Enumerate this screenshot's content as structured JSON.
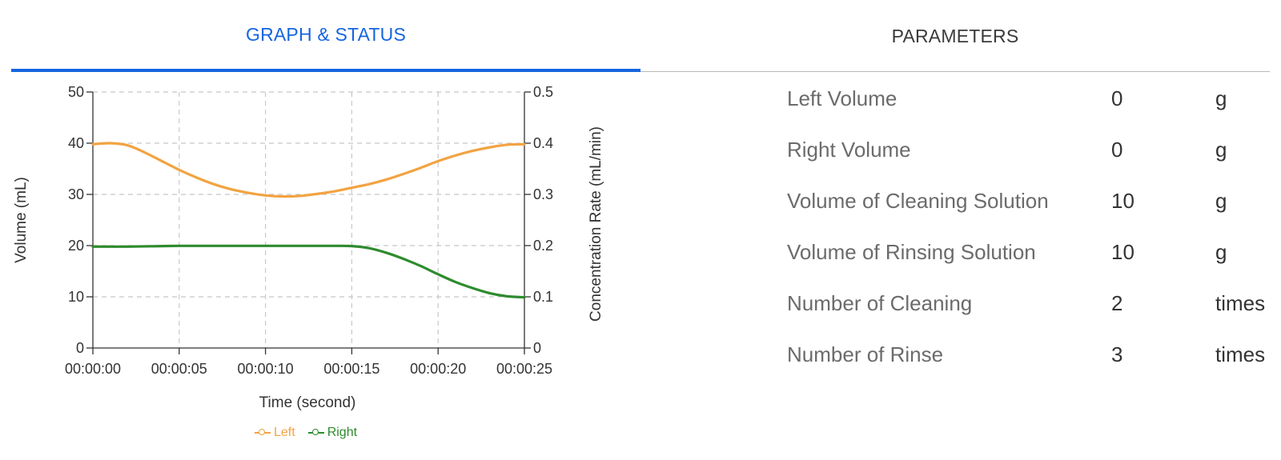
{
  "tabs": [
    {
      "label": "GRAPH & STATUS",
      "active": true
    },
    {
      "label": "PARAMETERS",
      "active": false
    }
  ],
  "colors": {
    "accent": "#1565e0",
    "left_series": "#f2a341",
    "right_series": "#2e8b2e"
  },
  "chart_data": {
    "type": "line",
    "xlabel": "Time (second)",
    "ylabel": "Volume (mL)",
    "y2label": "Concentration Rate (mL/min)",
    "x_ticks": [
      "00:00:00",
      "00:00:05",
      "00:00:10",
      "00:00:15",
      "00:00:20",
      "00:00:25"
    ],
    "xlim": [
      0,
      25
    ],
    "ylim": [
      0,
      50
    ],
    "y_ticks": [
      "0",
      "10",
      "20",
      "30",
      "40",
      "50"
    ],
    "y2lim": [
      0,
      0.5
    ],
    "y2_ticks": [
      "0",
      "0.1",
      "0.2",
      "0.3",
      "0.4",
      "0.5"
    ],
    "grid": true,
    "legend_position": "bottom-center",
    "series": [
      {
        "name": "Left",
        "x": [
          0,
          1,
          2,
          3,
          4,
          5,
          6,
          7,
          8,
          9,
          10,
          11,
          12,
          13,
          14,
          15,
          16,
          17,
          18,
          19,
          20,
          21,
          22,
          23,
          24,
          25
        ],
        "values": [
          39.8,
          40.0,
          39.6,
          38.2,
          36.5,
          34.8,
          33.3,
          32.0,
          31.0,
          30.3,
          29.8,
          29.6,
          29.7,
          30.1,
          30.6,
          31.3,
          32.0,
          32.9,
          34.0,
          35.2,
          36.5,
          37.6,
          38.5,
          39.2,
          39.7,
          39.8
        ]
      },
      {
        "name": "Right",
        "x": [
          0,
          1,
          2,
          3,
          4,
          5,
          6,
          7,
          8,
          9,
          10,
          11,
          12,
          13,
          14,
          15,
          16,
          17,
          18,
          19,
          20,
          21,
          22,
          23,
          24,
          25
        ],
        "values": [
          19.8,
          19.8,
          19.8,
          19.85,
          19.9,
          19.95,
          19.95,
          19.95,
          19.95,
          19.95,
          19.95,
          19.95,
          19.95,
          19.95,
          19.95,
          19.9,
          19.5,
          18.6,
          17.4,
          16.0,
          14.4,
          12.9,
          11.7,
          10.7,
          10.1,
          9.9
        ]
      }
    ]
  },
  "parameters": [
    {
      "label": "Left Volume",
      "value": "0",
      "unit": "g"
    },
    {
      "label": "Right Volume",
      "value": "0",
      "unit": "g"
    },
    {
      "label": "Volume of Cleaning Solution",
      "value": "10",
      "unit": "g"
    },
    {
      "label": "Volume of Rinsing Solution",
      "value": "10",
      "unit": "g"
    },
    {
      "label": "Number of Cleaning",
      "value": "2",
      "unit": "times"
    },
    {
      "label": "Number of Rinse",
      "value": "3",
      "unit": "times"
    }
  ]
}
